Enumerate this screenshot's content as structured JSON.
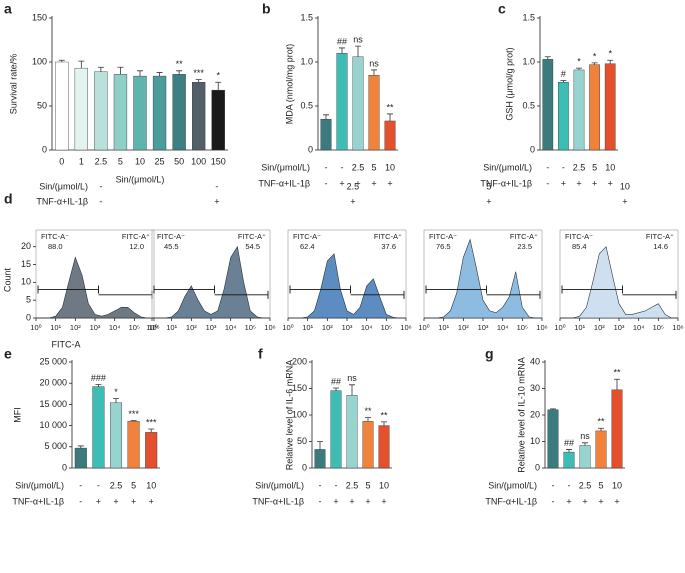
{
  "chart_data": [
    {
      "type": "bar",
      "panel": "a",
      "ylabel": "Survival rate/%",
      "xlabel": "Sin/(μmol/L)",
      "categories": [
        "0",
        "1",
        "2.5",
        "5",
        "10",
        "25",
        "50",
        "100",
        "150"
      ],
      "values": [
        100,
        93,
        89,
        86,
        84,
        84,
        86,
        77,
        68
      ],
      "errors": [
        2,
        8,
        5,
        8,
        6,
        4,
        4,
        3,
        9
      ],
      "annotations": [
        null,
        null,
        null,
        null,
        null,
        null,
        "**",
        "***",
        "*"
      ],
      "colors": [
        "#ffffff",
        "#e3f3f0",
        "#b9e0da",
        "#8fcfc6",
        "#5fb5ae",
        "#4b9d9b",
        "#3d7f83",
        "#525e68",
        "#1a1a1a"
      ],
      "ylim": [
        0,
        150
      ],
      "yticks": [
        0,
        50,
        100,
        150
      ]
    },
    {
      "type": "bar",
      "panel": "b",
      "ylabel": "MDA (nmol/mg prot)",
      "condition_rows": [
        {
          "label": "Sin/(μmol/L)",
          "values": [
            "-",
            "-",
            "2.5",
            "5",
            "10"
          ]
        },
        {
          "label": "TNF-α+IL-1β",
          "values": [
            "-",
            "+",
            "+",
            "+",
            "+"
          ]
        }
      ],
      "values": [
        0.35,
        1.1,
        1.06,
        0.85,
        0.33
      ],
      "errors": [
        0.05,
        0.06,
        0.12,
        0.06,
        0.08
      ],
      "annotations": [
        null,
        "##",
        "ns",
        "ns",
        "**"
      ],
      "colors": [
        "#3b7b7e",
        "#3dbdb6",
        "#98d4cf",
        "#f0823c",
        "#e4502b"
      ],
      "ylim": [
        0,
        1.5
      ],
      "yticks": [
        0,
        0.5,
        {
          "value": 1,
          "label": "1.0"
        },
        1.5
      ]
    },
    {
      "type": "bar",
      "panel": "c",
      "ylabel": "GSH (μmol/g prot)",
      "condition_rows": [
        {
          "label": "Sin/(μmol/L)",
          "values": [
            "-",
            "-",
            "2.5",
            "5",
            "10"
          ]
        },
        {
          "label": "TNF-α+IL-1β",
          "values": [
            "-",
            "+",
            "+",
            "+",
            "+"
          ]
        }
      ],
      "values": [
        1.03,
        0.77,
        0.91,
        0.97,
        0.98
      ],
      "errors": [
        0.03,
        0.02,
        0.02,
        0.02,
        0.04
      ],
      "annotations": [
        null,
        "#",
        "*",
        "*",
        "*"
      ],
      "colors": [
        "#3b7b7e",
        "#3dbdb6",
        "#98d4cf",
        "#f0823c",
        "#e4502b"
      ],
      "ylim": [
        0,
        1.5
      ],
      "yticks": [
        0,
        0.5,
        {
          "value": 1,
          "label": "1.0"
        },
        1.5
      ]
    },
    {
      "type": "flow",
      "panel": "d",
      "ylabel": "Count",
      "xlabel": "FITC-A",
      "condition_rows": [
        {
          "label": "Sin/(μmol/L)",
          "values": [
            "-",
            "-",
            "2.5",
            "5",
            "10"
          ]
        },
        {
          "label": "TNF-α+IL-1β",
          "values": [
            "-",
            "+",
            "+",
            "+",
            "+"
          ]
        }
      ],
      "x": [
        1,
        2.2,
        4.6,
        10,
        22,
        46,
        100,
        220,
        460,
        1000,
        2200,
        4600,
        10000,
        22000,
        46000,
        100000,
        220000,
        460000,
        1000000
      ],
      "xlim": [
        1,
        1000000
      ],
      "xticks": [
        {
          "value": 1,
          "label": "10⁰"
        },
        {
          "value": 10,
          "label": "10¹"
        },
        {
          "value": 100,
          "label": "10²"
        },
        {
          "value": 1000,
          "label": "10³"
        },
        {
          "value": 10000,
          "label": "10⁴"
        },
        {
          "value": 100000,
          "label": "10⁵"
        },
        {
          "value": 1000000,
          "label": "10⁶"
        }
      ],
      "ylim": [
        0,
        23
      ],
      "yticks": [
        0,
        5,
        10,
        15,
        20
      ],
      "series": [
        {
          "color": "#5f6a76",
          "values": [
            0,
            0,
            0,
            0.5,
            3,
            10,
            17,
            12,
            4,
            1,
            0.5,
            1,
            2,
            3,
            3,
            1.5,
            0.3,
            0,
            0
          ],
          "neg_label": "FITC-A⁻",
          "neg_value": "88.0",
          "pos_label": "FITC-A⁺",
          "pos_value": "12.0"
        },
        {
          "color": "#5a7288",
          "values": [
            0,
            0,
            0,
            0.3,
            2,
            6,
            9,
            5,
            2,
            1,
            2,
            8,
            17,
            20,
            10,
            2,
            0.3,
            0,
            0
          ],
          "neg_label": "FITC-A⁻",
          "neg_value": "45.5",
          "pos_label": "FITC-A⁺",
          "pos_value": "54.5"
        },
        {
          "color": "#4a80b9",
          "values": [
            0,
            0,
            0,
            0.3,
            2,
            8,
            16,
            18,
            8,
            2,
            1,
            3,
            9,
            11,
            6,
            1,
            0.2,
            0,
            0
          ],
          "neg_label": "FITC-A⁻",
          "neg_value": "62.4",
          "pos_label": "FITC-A⁺",
          "pos_value": "37.6"
        },
        {
          "color": "#82b5dd",
          "values": [
            0,
            0,
            0,
            0.3,
            2,
            7,
            17,
            22,
            14,
            5,
            2,
            1.5,
            3,
            6,
            13,
            3,
            0.3,
            0,
            0
          ],
          "neg_label": "FITC-A⁻",
          "neg_value": "76.5",
          "pos_label": "FITC-A⁺",
          "pos_value": "23.5"
        },
        {
          "color": "#c9dcee",
          "values": [
            0,
            0,
            0,
            0.5,
            3,
            10,
            18,
            20,
            12,
            4,
            1,
            1,
            1.5,
            2,
            3,
            4,
            1,
            0,
            0
          ],
          "neg_label": "FITC-A⁻",
          "neg_value": "85.4",
          "pos_label": "FITC-A⁺",
          "pos_value": "14.6"
        }
      ]
    },
    {
      "type": "bar",
      "panel": "e",
      "ylabel": "MFI",
      "condition_rows": [
        {
          "label": "Sin/(μmol/L)",
          "values": [
            "-",
            "-",
            "2.5",
            "5",
            "10"
          ]
        },
        {
          "label": "TNF-α+IL-1β",
          "values": [
            "-",
            "+",
            "+",
            "+",
            "+"
          ]
        }
      ],
      "values": [
        4700,
        19200,
        15400,
        11000,
        8400
      ],
      "errors": [
        500,
        500,
        1000,
        200,
        800
      ],
      "annotations": [
        null,
        "###",
        "*",
        "***",
        "***"
      ],
      "colors": [
        "#3b7b7e",
        "#3dbdb6",
        "#98d4cf",
        "#f0823c",
        "#e4502b"
      ],
      "ylim": [
        0,
        25000
      ],
      "yticks": [
        0,
        {
          "value": 5000,
          "label": "5 000"
        },
        {
          "value": 10000,
          "label": "10 000"
        },
        {
          "value": 15000,
          "label": "15 000"
        },
        {
          "value": 20000,
          "label": "20 000"
        },
        {
          "value": 25000,
          "label": "25 000"
        }
      ]
    },
    {
      "type": "bar",
      "panel": "f",
      "ylabel": "Relative level of IL-6 mRNA",
      "condition_rows": [
        {
          "label": "Sin/(μmol/L)",
          "values": [
            "-",
            "-",
            "2.5",
            "5",
            "10"
          ]
        },
        {
          "label": "TNF-α+IL-1β",
          "values": [
            "-",
            "+",
            "+",
            "+",
            "+"
          ]
        }
      ],
      "values": [
        35,
        146,
        137,
        88,
        80
      ],
      "errors": [
        15,
        5,
        20,
        7,
        7
      ],
      "annotations": [
        null,
        "##",
        "ns",
        "**",
        "**"
      ],
      "colors": [
        "#3b7b7e",
        "#3dbdb6",
        "#98d4cf",
        "#f0823c",
        "#e4502b"
      ],
      "ylim": [
        0,
        200
      ],
      "yticks": [
        0,
        50,
        100,
        150,
        200
      ]
    },
    {
      "type": "bar",
      "panel": "g",
      "ylabel": "Relative level of IL-10 mRNA",
      "condition_rows": [
        {
          "label": "Sin/(μmol/L)",
          "values": [
            "-",
            "-",
            "2.5",
            "5",
            "10"
          ]
        },
        {
          "label": "TNF-α+IL-1β",
          "values": [
            "-",
            "+",
            "+",
            "+",
            "+"
          ]
        }
      ],
      "values": [
        22,
        6,
        8.5,
        14,
        29.5
      ],
      "errors": [
        0.3,
        1,
        1,
        1,
        4
      ],
      "annotations": [
        null,
        "##",
        "ns",
        "**",
        "**"
      ],
      "colors": [
        "#3b7b7e",
        "#3dbdb6",
        "#98d4cf",
        "#f0823c",
        "#e4502b"
      ],
      "ylim": [
        0,
        40
      ],
      "yticks": [
        0,
        10,
        20,
        30,
        40
      ]
    }
  ]
}
